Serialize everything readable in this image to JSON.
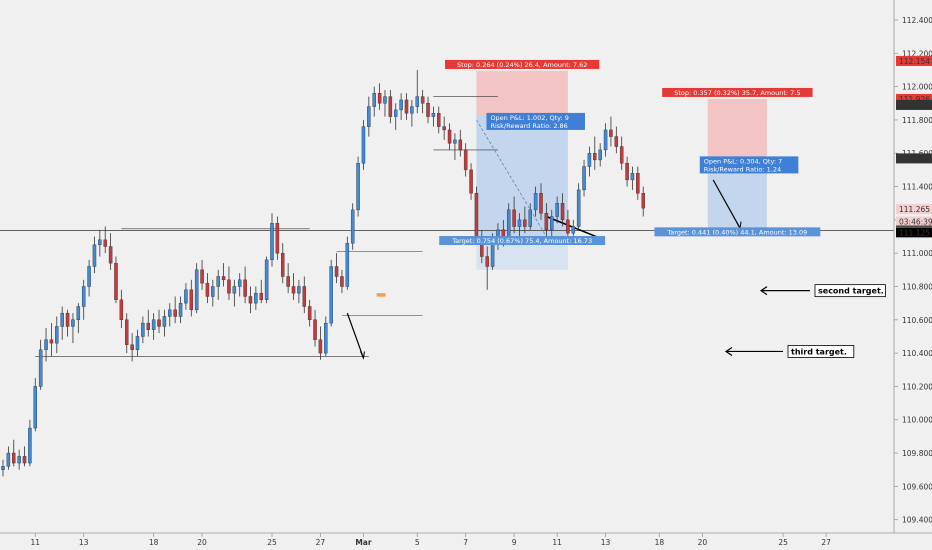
{
  "chart_data": {
    "type": "candlestick",
    "title": "",
    "xlabel": "",
    "ylabel": "",
    "ylim": [
      109.32,
      112.52
    ],
    "grid": false,
    "colors": {
      "up": "#3d8bd9",
      "down": "#c53a3a",
      "background": "#f0f0f0",
      "stop_zone": "#f2bcbc",
      "target_zone": "#bcd1ec",
      "target_zone_light": "#d3e0f1",
      "stop_label": "#e53935",
      "target_label": "#5b93d8",
      "pnl_label": "#3f7fd6"
    },
    "y_ticks": [
      "112.400",
      "112.200",
      "112.000",
      "111.800",
      "111.600",
      "111.400",
      "111.200",
      "111.000",
      "110.800",
      "110.600",
      "110.400",
      "110.200",
      "110.000",
      "109.800",
      "109.600",
      "109.400"
    ],
    "x_ticks": [
      "11",
      "13",
      "18",
      "20",
      "25",
      "27",
      "Mar",
      "5",
      "7",
      "9",
      "11",
      "13",
      "18",
      "20",
      "25",
      "27"
    ],
    "x_tick_index": [
      6,
      15,
      28,
      37,
      50,
      59,
      67,
      77,
      86,
      95,
      103,
      112,
      122,
      130,
      145,
      153
    ],
    "price_labels": [
      {
        "text": "112.154",
        "value": 112.154,
        "bg": "#e53935",
        "fg": "#ffffff"
      },
      {
        "text": "111.926",
        "value": 111.926,
        "bg": "#e53935",
        "fg": "#ffffff"
      },
      {
        "text": "111.890",
        "value": 111.89,
        "bg": "#333333",
        "fg": "#ffffff"
      },
      {
        "text": "111.569",
        "value": 111.569,
        "bg": "#333333",
        "fg": "#ffffff"
      },
      {
        "text": "111.265",
        "value": 111.265,
        "bg": "#f3d0d0",
        "fg": "#c62828"
      },
      {
        "text": "03:46:39",
        "value": 111.19,
        "bg": "#f3d0d0",
        "fg": "#c62828"
      },
      {
        "text": "111.136",
        "value": 111.136,
        "bg": "#333333",
        "fg": "#ffffff"
      },
      {
        "text": "111.128",
        "value": 111.128,
        "bg": "#f0f0f0",
        "fg": "#333333"
      },
      {
        "text": "111.125",
        "value": 111.125,
        "bg": "#000000",
        "fg": "#ffffff"
      }
    ],
    "series": [
      {
        "name": "",
        "ohlc": [
          [
            109.7,
            109.76,
            109.66,
            109.72
          ],
          [
            109.72,
            109.84,
            109.7,
            109.8
          ],
          [
            109.8,
            109.88,
            109.72,
            109.74
          ],
          [
            109.74,
            109.82,
            109.7,
            109.78
          ],
          [
            109.78,
            109.84,
            109.72,
            109.74
          ],
          [
            109.74,
            110.0,
            109.72,
            109.95
          ],
          [
            109.95,
            110.25,
            109.93,
            110.2
          ],
          [
            110.2,
            110.48,
            110.18,
            110.42
          ],
          [
            110.42,
            110.55,
            110.35,
            110.48
          ],
          [
            110.48,
            110.58,
            110.38,
            110.46
          ],
          [
            110.46,
            110.62,
            110.4,
            110.56
          ],
          [
            110.56,
            110.68,
            110.48,
            110.64
          ],
          [
            110.64,
            110.66,
            110.5,
            110.56
          ],
          [
            110.56,
            110.64,
            110.46,
            110.6
          ],
          [
            110.6,
            110.7,
            110.52,
            110.68
          ],
          [
            110.68,
            110.84,
            110.6,
            110.8
          ],
          [
            110.8,
            110.96,
            110.74,
            110.92
          ],
          [
            110.92,
            111.1,
            110.88,
            111.05
          ],
          [
            111.05,
            111.14,
            110.98,
            111.08
          ],
          [
            111.08,
            111.16,
            111.0,
            111.04
          ],
          [
            111.04,
            111.12,
            110.9,
            110.94
          ],
          [
            110.94,
            110.98,
            110.7,
            110.72
          ],
          [
            110.72,
            110.78,
            110.55,
            110.6
          ],
          [
            110.6,
            110.64,
            110.4,
            110.45
          ],
          [
            110.45,
            110.52,
            110.35,
            110.42
          ],
          [
            110.42,
            110.54,
            110.38,
            110.5
          ],
          [
            110.5,
            110.62,
            110.46,
            110.58
          ],
          [
            110.58,
            110.66,
            110.5,
            110.54
          ],
          [
            110.54,
            110.64,
            110.48,
            110.6
          ],
          [
            110.6,
            110.66,
            110.52,
            110.56
          ],
          [
            110.56,
            110.66,
            110.5,
            110.62
          ],
          [
            110.62,
            110.7,
            110.56,
            110.66
          ],
          [
            110.66,
            110.74,
            110.58,
            110.62
          ],
          [
            110.62,
            110.74,
            110.58,
            110.7
          ],
          [
            110.7,
            110.82,
            110.66,
            110.78
          ],
          [
            110.78,
            110.84,
            110.62,
            110.66
          ],
          [
            110.66,
            110.94,
            110.64,
            110.9
          ],
          [
            110.9,
            110.96,
            110.78,
            110.82
          ],
          [
            110.82,
            110.88,
            110.7,
            110.74
          ],
          [
            110.74,
            110.84,
            110.68,
            110.8
          ],
          [
            110.8,
            110.9,
            110.72,
            110.86
          ],
          [
            110.86,
            110.94,
            110.8,
            110.84
          ],
          [
            110.84,
            110.92,
            110.72,
            110.76
          ],
          [
            110.76,
            110.84,
            110.68,
            110.8
          ],
          [
            110.8,
            110.88,
            110.74,
            110.84
          ],
          [
            110.84,
            110.92,
            110.7,
            110.74
          ],
          [
            110.74,
            110.8,
            110.64,
            110.7
          ],
          [
            110.7,
            110.8,
            110.66,
            110.76
          ],
          [
            110.76,
            110.84,
            110.7,
            110.72
          ],
          [
            110.72,
            110.98,
            110.7,
            110.96
          ],
          [
            110.96,
            111.24,
            110.92,
            111.18
          ],
          [
            111.18,
            111.22,
            110.96,
            111.0
          ],
          [
            111.0,
            111.06,
            110.82,
            110.86
          ],
          [
            110.86,
            110.94,
            110.76,
            110.8
          ],
          [
            110.8,
            110.88,
            110.72,
            110.76
          ],
          [
            110.76,
            110.84,
            110.7,
            110.8
          ],
          [
            110.8,
            110.86,
            110.64,
            110.68
          ],
          [
            110.68,
            110.72,
            110.56,
            110.6
          ],
          [
            110.6,
            110.66,
            110.44,
            110.48
          ],
          [
            110.48,
            110.56,
            110.36,
            110.4
          ],
          [
            110.4,
            110.62,
            110.38,
            110.58
          ],
          [
            110.58,
            110.96,
            110.56,
            110.92
          ],
          [
            110.92,
            111.0,
            110.82,
            110.86
          ],
          [
            110.86,
            110.9,
            110.76,
            110.8
          ],
          [
            110.8,
            111.1,
            110.78,
            111.06
          ],
          [
            111.06,
            111.3,
            111.02,
            111.26
          ],
          [
            111.26,
            111.58,
            111.22,
            111.54
          ],
          [
            111.54,
            111.8,
            111.5,
            111.76
          ],
          [
            111.76,
            111.94,
            111.7,
            111.88
          ],
          [
            111.88,
            112.0,
            111.82,
            111.96
          ],
          [
            111.96,
            112.02,
            111.86,
            111.9
          ],
          [
            111.9,
            111.98,
            111.82,
            111.94
          ],
          [
            111.94,
            111.98,
            111.78,
            111.82
          ],
          [
            111.82,
            111.9,
            111.74,
            111.86
          ],
          [
            111.86,
            111.96,
            111.8,
            111.92
          ],
          [
            111.92,
            111.96,
            111.8,
            111.84
          ],
          [
            111.84,
            111.92,
            111.76,
            111.88
          ],
          [
            111.88,
            112.1,
            111.84,
            111.94
          ],
          [
            111.94,
            111.98,
            111.84,
            111.9
          ],
          [
            111.9,
            111.94,
            111.78,
            111.82
          ],
          [
            111.82,
            111.88,
            111.76,
            111.84
          ],
          [
            111.84,
            111.88,
            111.72,
            111.76
          ],
          [
            111.76,
            111.82,
            111.68,
            111.74
          ],
          [
            111.74,
            111.78,
            111.62,
            111.66
          ],
          [
            111.66,
            111.72,
            111.56,
            111.68
          ],
          [
            111.68,
            111.74,
            111.58,
            111.62
          ],
          [
            111.62,
            111.66,
            111.46,
            111.5
          ],
          [
            111.5,
            111.54,
            111.32,
            111.36
          ],
          [
            111.36,
            111.4,
            111.06,
            111.1
          ],
          [
            111.1,
            111.14,
            110.94,
            110.98
          ],
          [
            110.98,
            111.04,
            110.78,
            110.92
          ],
          [
            110.92,
            111.12,
            110.9,
            111.06
          ],
          [
            111.06,
            111.18,
            111.02,
            111.14
          ],
          [
            111.14,
            111.2,
            111.04,
            111.1
          ],
          [
            111.1,
            111.3,
            111.08,
            111.26
          ],
          [
            111.26,
            111.34,
            111.12,
            111.16
          ],
          [
            111.16,
            111.24,
            111.08,
            111.2
          ],
          [
            111.2,
            111.28,
            111.12,
            111.16
          ],
          [
            111.16,
            111.3,
            111.14,
            111.26
          ],
          [
            111.26,
            111.4,
            111.22,
            111.36
          ],
          [
            111.36,
            111.42,
            111.2,
            111.24
          ],
          [
            111.24,
            111.3,
            111.1,
            111.14
          ],
          [
            111.14,
            111.26,
            111.1,
            111.22
          ],
          [
            111.22,
            111.34,
            111.18,
            111.3
          ],
          [
            111.3,
            111.36,
            111.16,
            111.2
          ],
          [
            111.2,
            111.26,
            111.08,
            111.12
          ],
          [
            111.12,
            111.2,
            111.06,
            111.16
          ],
          [
            111.16,
            111.42,
            111.14,
            111.38
          ],
          [
            111.38,
            111.56,
            111.34,
            111.52
          ],
          [
            111.52,
            111.64,
            111.46,
            111.6
          ],
          [
            111.6,
            111.7,
            111.5,
            111.56
          ],
          [
            111.56,
            111.66,
            111.52,
            111.62
          ],
          [
            111.62,
            111.78,
            111.58,
            111.74
          ],
          [
            111.74,
            111.82,
            111.64,
            111.7
          ],
          [
            111.7,
            111.76,
            111.6,
            111.64
          ],
          [
            111.64,
            111.7,
            111.5,
            111.54
          ],
          [
            111.54,
            111.58,
            111.4,
            111.44
          ],
          [
            111.44,
            111.52,
            111.38,
            111.48
          ],
          [
            111.48,
            111.52,
            111.32,
            111.36
          ],
          [
            111.36,
            111.4,
            111.22,
            111.27
          ]
        ]
      }
    ],
    "hlines": [
      {
        "value": 111.136,
        "from": 0,
        "to": 1,
        "color": "#333333",
        "width": 0.8
      },
      {
        "value": 111.146,
        "from": 22,
        "to": 57,
        "color": "#333333",
        "width": 0.6
      },
      {
        "value": 111.01,
        "from": 62,
        "to": 78,
        "color": "#333333",
        "width": 0.6
      },
      {
        "value": 110.38,
        "from": 6,
        "to": 68,
        "color": "#333333",
        "width": 0.6
      },
      {
        "value": 110.625,
        "from": 63,
        "to": 78,
        "color": "#333333",
        "width": 0.6
      },
      {
        "value": 111.94,
        "from": 80,
        "to": 92,
        "color": "#333333",
        "width": 0.6
      },
      {
        "value": 111.62,
        "from": 80,
        "to": 92,
        "color": "#333333",
        "width": 0.6
      },
      {
        "value": 111.562,
        "from": 130,
        "to": 137,
        "color": "#333333",
        "width": 0.8
      }
    ],
    "positions": [
      {
        "from": 88,
        "to": 105,
        "entry": 111.83,
        "stop": 112.094,
        "target": 111.076,
        "target_zone_bottom": 110.9,
        "stop_text": "Stop: 0.264 (0.24%) 26.4, Amount: 7.62",
        "target_text": "Target: 0.754 (0.67%) 75.4, Amount: 16.73",
        "pnl_text": [
          "Open P&L: 1.002, Qty: 9",
          "Risk/Reward Ratio: 2.86"
        ]
      },
      {
        "from": 131,
        "to": 142,
        "entry": 111.569,
        "stop": 111.926,
        "target": 111.128,
        "target_zone_bottom": 111.128,
        "stop_text": "Stop: 0.357 (0.32%) 35.7, Amount: 7.5",
        "target_text": "Target: 0.441 (0.40%) 44.1, Amount: 13.09",
        "pnl_text": [
          "Open P&L: 0.304, Qty: 7",
          "Risk/Reward Ratio: 1.24"
        ]
      }
    ],
    "annotations": [
      {
        "text": "second target.",
        "value": 110.775
      },
      {
        "text": "third target.",
        "value": 110.41
      }
    ]
  }
}
